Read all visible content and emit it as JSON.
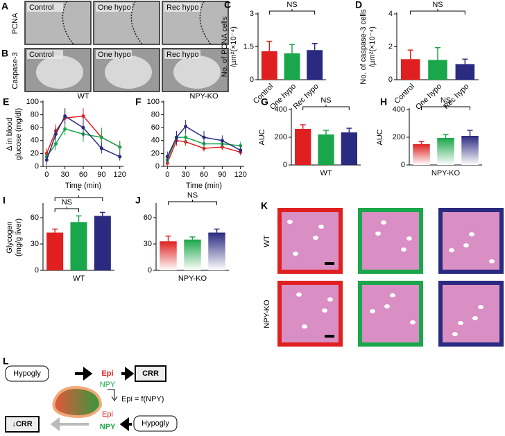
{
  "micrographs": {
    "panels": [
      "A",
      "B"
    ],
    "rows": [
      {
        "label": "PCNA",
        "columns": [
          "Control",
          "One hypo",
          "Rec hypo"
        ]
      },
      {
        "label": "Caspase-3",
        "columns": [
          "Control",
          "One hypo",
          "Rec hypo"
        ]
      }
    ]
  },
  "chart_data": [
    {
      "panel": "C",
      "type": "bar",
      "ylabel": [
        "No. of PCNA cells",
        "/µm²(×10⁻⁴)"
      ],
      "categories": [
        "Control",
        "One hypo",
        "Rec hypo"
      ],
      "values": [
        1.3,
        1.2,
        1.35
      ],
      "errors": [
        0.45,
        0.4,
        0.3
      ],
      "colors": [
        "#e02020",
        "#1aa64a",
        "#2a2a80"
      ],
      "ylim": [
        0,
        3
      ],
      "yticks": [
        0,
        1.5,
        3
      ],
      "annotations": [
        "NS"
      ]
    },
    {
      "panel": "D",
      "type": "bar",
      "ylabel": [
        "No. of caspase-3 cells",
        "/µm²(×10⁻⁴)"
      ],
      "categories": [
        "Control",
        "One hypo",
        "Rec hypo"
      ],
      "values": [
        1.25,
        1.2,
        0.95
      ],
      "errors": [
        0.55,
        0.75,
        0.3
      ],
      "colors": [
        "#e02020",
        "#1aa64a",
        "#2a2a80"
      ],
      "ylim": [
        0,
        4
      ],
      "yticks": [
        0,
        2,
        4
      ],
      "annotations": [
        "NS"
      ]
    },
    {
      "panel": "E",
      "type": "line",
      "title": "WT",
      "ylabel": [
        "Δ in blood",
        "glucose (mg/dl)"
      ],
      "xlabel": "Time (min)",
      "x": [
        0,
        15,
        30,
        60,
        90,
        120
      ],
      "xlim": [
        -6,
        126
      ],
      "xticks": [
        0,
        30,
        60,
        90,
        120
      ],
      "ylim": [
        0,
        100
      ],
      "yticks": [
        0,
        20,
        40,
        60,
        80,
        100
      ],
      "series": [
        {
          "color": "#e02020",
          "values": [
            20,
            55,
            75,
            78,
            45,
            30
          ],
          "errors": [
            8,
            10,
            15,
            12,
            10,
            8
          ]
        },
        {
          "color": "#1aa64a",
          "values": [
            15,
            35,
            58,
            50,
            45,
            30
          ],
          "errors": [
            6,
            10,
            10,
            12,
            15,
            10
          ]
        },
        {
          "color": "#2a2a80",
          "values": [
            10,
            50,
            78,
            60,
            28,
            15
          ],
          "errors": [
            8,
            10,
            12,
            15,
            8,
            6
          ]
        }
      ]
    },
    {
      "panel": "F",
      "type": "line",
      "title": "NPY-KO",
      "xlabel": "Time (min)",
      "x": [
        0,
        15,
        30,
        60,
        90,
        120
      ],
      "xlim": [
        -6,
        126
      ],
      "xticks": [
        0,
        30,
        60,
        90,
        120
      ],
      "ylim": [
        0,
        100
      ],
      "yticks": [
        0,
        20,
        40,
        60,
        80,
        100
      ],
      "series": [
        {
          "color": "#e02020",
          "values": [
            5,
            40,
            38,
            28,
            30,
            22
          ],
          "errors": [
            6,
            8,
            6,
            5,
            5,
            5
          ]
        },
        {
          "color": "#1aa64a",
          "values": [
            10,
            45,
            45,
            35,
            35,
            32
          ],
          "errors": [
            6,
            8,
            8,
            6,
            6,
            6
          ]
        },
        {
          "color": "#2a2a80",
          "values": [
            15,
            45,
            62,
            45,
            40,
            25
          ],
          "errors": [
            8,
            10,
            10,
            10,
            8,
            6
          ]
        }
      ]
    },
    {
      "panel": "G",
      "type": "bar",
      "ylabel": [
        "AUC"
      ],
      "xlabel": "WT",
      "values": [
        260,
        220,
        235
      ],
      "errors": [
        30,
        30,
        30
      ],
      "colors": [
        "#e02020",
        "#1aa64a",
        "#2a2a80"
      ],
      "ylim": [
        0,
        400
      ],
      "yticks": [
        0,
        200,
        400
      ],
      "annotations": [
        "NS"
      ]
    },
    {
      "panel": "H",
      "type": "bar",
      "ylabel": [
        "AUC"
      ],
      "xlabel": "NPY-KO",
      "values": [
        150,
        195,
        210
      ],
      "errors": [
        20,
        25,
        40
      ],
      "colors": [
        "#e02020",
        "#1aa64a",
        "#2a2a80"
      ],
      "gradient": true,
      "ylim": [
        0,
        400
      ],
      "yticks": [
        0,
        200,
        400
      ],
      "annotations": [
        "NS"
      ]
    },
    {
      "panel": "I",
      "type": "bar",
      "ylabel": [
        "Glycogen",
        "(mg/g liver)"
      ],
      "xlabel": "WT",
      "values": [
        43,
        55,
        62
      ],
      "errors": [
        4,
        7,
        4
      ],
      "colors": [
        "#e02020",
        "#1aa64a",
        "#2a2a80"
      ],
      "ylim": [
        0,
        75
      ],
      "yticks": [
        0,
        30,
        60
      ],
      "annotations": [
        "NS",
        "*"
      ]
    },
    {
      "panel": "J",
      "type": "bar",
      "xlabel": "NPY-KO",
      "values": [
        33,
        35,
        43
      ],
      "errors": [
        6,
        3,
        4
      ],
      "colors": [
        "#e02020",
        "#1aa64a",
        "#2a2a80"
      ],
      "gradient": true,
      "ylim": [
        0,
        75
      ],
      "yticks": [
        0,
        30,
        60
      ],
      "annotations": [
        "NS"
      ]
    }
  ],
  "histology": {
    "panel": "K",
    "rows": [
      "WT",
      "NPY-KO"
    ],
    "border_colors": [
      "#e02020",
      "#1aa64a",
      "#2a2a80"
    ]
  },
  "diagram": {
    "panel": "L",
    "top_input": "Hypogly",
    "top_epi": "Epi",
    "top_output": "CRR",
    "top_npy": "NPY",
    "relation": "Epi = f(NPY)",
    "bottom_epi": "Epi",
    "bottom_npy": "NPY",
    "bottom_input": "Hypogly",
    "bottom_output": "↓CRR"
  }
}
